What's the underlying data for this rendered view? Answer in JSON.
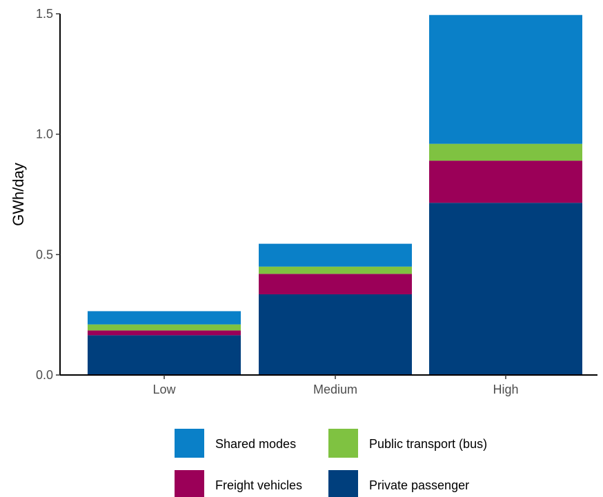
{
  "chart_data": {
    "type": "bar",
    "stacked": true,
    "title": "",
    "xlabel": "",
    "ylabel": "GWh/day",
    "ylim": [
      0,
      1.5
    ],
    "yticks": [
      "0.0",
      "0.5",
      "1.0",
      "1.5"
    ],
    "categories": [
      "Low",
      "Medium",
      "High"
    ],
    "grid": false,
    "legend_position": "bottom",
    "series": [
      {
        "name": "Private passenger",
        "color": "#003f7d",
        "values": [
          0.165,
          0.335,
          0.715
        ]
      },
      {
        "name": "Freight vehicles",
        "color": "#9b0058",
        "values": [
          0.02,
          0.085,
          0.175
        ]
      },
      {
        "name": "Public transport (bus)",
        "color": "#7fc241",
        "values": [
          0.025,
          0.03,
          0.07
        ]
      },
      {
        "name": "Shared modes",
        "color": "#0a80c8",
        "values": [
          0.055,
          0.095,
          0.535
        ]
      }
    ],
    "legend_order": [
      "Shared modes",
      "Public transport (bus)",
      "Freight vehicles",
      "Private passenger"
    ]
  }
}
